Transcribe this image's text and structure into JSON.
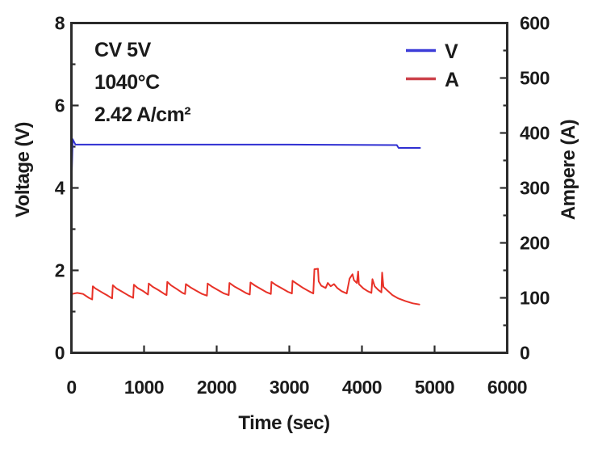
{
  "figure": {
    "background": "#ffffff",
    "frame_color": "#2b2b2b",
    "text_color": "#1b1b1b"
  },
  "chart_data": {
    "type": "line",
    "title": "",
    "xlabel": "Time (sec)",
    "ylabel_left": "Voltage (V)",
    "ylabel_right": "Ampere (A)",
    "x_range": [
      0,
      6000
    ],
    "x_ticks": [
      0,
      1000,
      2000,
      3000,
      4000,
      5000,
      6000
    ],
    "y_left_range": [
      0,
      8
    ],
    "y_left_ticks": [
      0,
      2,
      4,
      6,
      8
    ],
    "y_left_minor_ticks": [
      1,
      3,
      5,
      7
    ],
    "y_right_range": [
      0,
      600
    ],
    "y_right_ticks": [
      0,
      100,
      200,
      300,
      400,
      500,
      600
    ],
    "y_right_minor_ticks": [
      50,
      150,
      250,
      350,
      450,
      550
    ],
    "grid": false,
    "legend_position": "top-right",
    "annotations": [
      "CV 5V",
      "1040°C",
      "2.42 A/cm²"
    ],
    "series": [
      {
        "name": "V",
        "axis": "left",
        "color": "#2f2fd2",
        "legend_color": "#3c3cd8",
        "points": [
          [
            0,
            4.05
          ],
          [
            18,
            5.18
          ],
          [
            55,
            5.05
          ],
          [
            3000,
            5.05
          ],
          [
            4480,
            5.04
          ],
          [
            4505,
            4.97
          ],
          [
            4800,
            4.97
          ]
        ]
      },
      {
        "name": "A",
        "axis": "right",
        "color": "#e83228",
        "legend_color": "#cc4049",
        "points": [
          [
            0,
            72
          ],
          [
            8,
            107
          ],
          [
            80,
            109
          ],
          [
            160,
            107
          ],
          [
            240,
            100
          ],
          [
            285,
            97
          ],
          [
            295,
            121
          ],
          [
            330,
            117
          ],
          [
            420,
            110
          ],
          [
            500,
            104
          ],
          [
            560,
            99
          ],
          [
            570,
            123
          ],
          [
            620,
            117
          ],
          [
            700,
            111
          ],
          [
            790,
            104
          ],
          [
            850,
            100
          ],
          [
            860,
            124
          ],
          [
            910,
            118
          ],
          [
            990,
            112
          ],
          [
            1055,
            106
          ],
          [
            1065,
            126
          ],
          [
            1120,
            120
          ],
          [
            1200,
            114
          ],
          [
            1280,
            107
          ],
          [
            1310,
            105
          ],
          [
            1320,
            129
          ],
          [
            1370,
            123
          ],
          [
            1450,
            116
          ],
          [
            1530,
            109
          ],
          [
            1565,
            107
          ],
          [
            1575,
            125
          ],
          [
            1640,
            119
          ],
          [
            1720,
            113
          ],
          [
            1800,
            107
          ],
          [
            1865,
            104
          ],
          [
            1875,
            126
          ],
          [
            1940,
            120
          ],
          [
            2020,
            114
          ],
          [
            2100,
            108
          ],
          [
            2165,
            105
          ],
          [
            2175,
            127
          ],
          [
            2240,
            121
          ],
          [
            2320,
            115
          ],
          [
            2400,
            109
          ],
          [
            2455,
            106
          ],
          [
            2465,
            128
          ],
          [
            2530,
            122
          ],
          [
            2610,
            116
          ],
          [
            2690,
            110
          ],
          [
            2745,
            107
          ],
          [
            2755,
            129
          ],
          [
            2820,
            123
          ],
          [
            2900,
            117
          ],
          [
            2980,
            111
          ],
          [
            3035,
            108
          ],
          [
            3045,
            131
          ],
          [
            3110,
            125
          ],
          [
            3190,
            118
          ],
          [
            3270,
            112
          ],
          [
            3330,
            108
          ],
          [
            3345,
            152
          ],
          [
            3395,
            153
          ],
          [
            3405,
            130
          ],
          [
            3440,
            122
          ],
          [
            3500,
            118
          ],
          [
            3530,
            127
          ],
          [
            3570,
            121
          ],
          [
            3615,
            125
          ],
          [
            3660,
            118
          ],
          [
            3720,
            112
          ],
          [
            3790,
            108
          ],
          [
            3830,
            135
          ],
          [
            3870,
            143
          ],
          [
            3890,
            132
          ],
          [
            3930,
            127
          ],
          [
            3948,
            148
          ],
          [
            3958,
            125
          ],
          [
            4020,
            117
          ],
          [
            4080,
            112
          ],
          [
            4130,
            109
          ],
          [
            4145,
            134
          ],
          [
            4175,
            121
          ],
          [
            4220,
            115
          ],
          [
            4268,
            110
          ],
          [
            4278,
            146
          ],
          [
            4295,
            120
          ],
          [
            4360,
            112
          ],
          [
            4420,
            105
          ],
          [
            4500,
            99
          ],
          [
            4600,
            94
          ],
          [
            4700,
            90
          ],
          [
            4790,
            88
          ]
        ]
      }
    ]
  }
}
